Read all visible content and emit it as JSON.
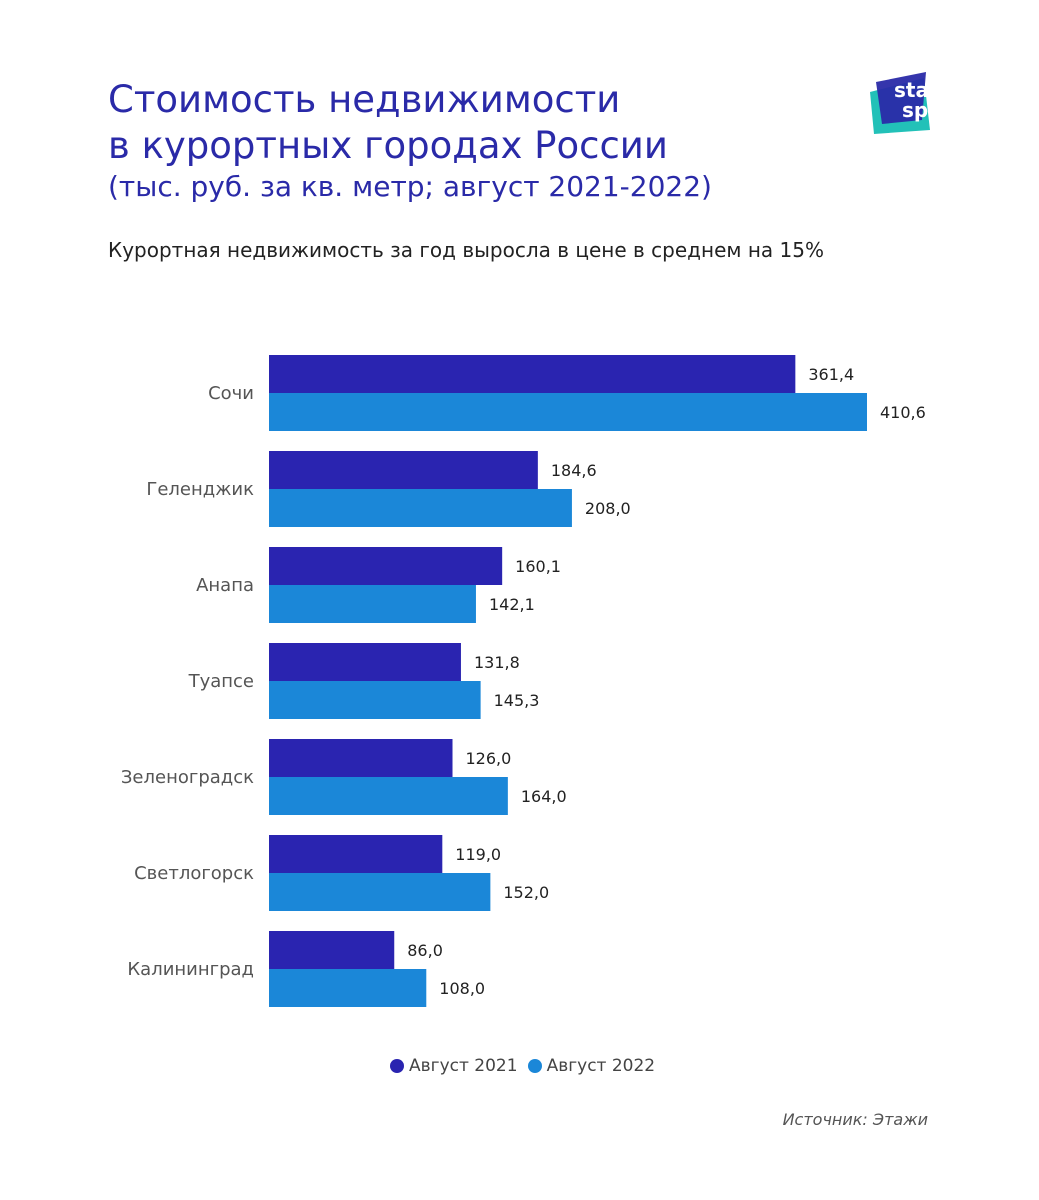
{
  "header": {
    "title_line1": "Стоимость недвижимости",
    "title_line2": "в курортных городах России",
    "title_line3": "(тыс. руб. за кв. метр; август 2021-2022)",
    "subtitle": "Курортная недвижимость за год выросла в цене в среднем на 15%"
  },
  "logo": {
    "line1": "stat",
    "line2": "space"
  },
  "colors": {
    "series2021": "#2a24b0",
    "series2022": "#1b87d8",
    "title": "#2a2aa8"
  },
  "chart_data": {
    "type": "bar",
    "orientation": "horizontal",
    "title": "Стоимость недвижимости в курортных городах России (тыс. руб. за кв. метр; август 2021-2022)",
    "categories": [
      "Сочи",
      "Геленджик",
      "Анапа",
      "Туапсе",
      "Зеленоградск",
      "Светлогорск",
      "Калининград"
    ],
    "series": [
      {
        "name": "Август 2021",
        "values": [
          361.4,
          184.6,
          160.1,
          131.8,
          126.0,
          119.0,
          86.0
        ],
        "labels": [
          "361,4",
          "184,6",
          "160,1",
          "131,8",
          "126,0",
          "119,0",
          "86,0"
        ]
      },
      {
        "name": "Август 2022",
        "values": [
          410.6,
          208.0,
          142.1,
          145.3,
          164.0,
          152.0,
          108.0
        ],
        "labels": [
          "410,6",
          "208,0",
          "142,1",
          "145,3",
          "164,0",
          "152,0",
          "108,0"
        ]
      }
    ],
    "xlim": [
      0,
      410.6
    ],
    "grid": false,
    "legend": "bottom-center"
  },
  "legend": {
    "items": [
      "Август 2021",
      "Август 2022"
    ]
  },
  "source": "Источник: Этажи"
}
